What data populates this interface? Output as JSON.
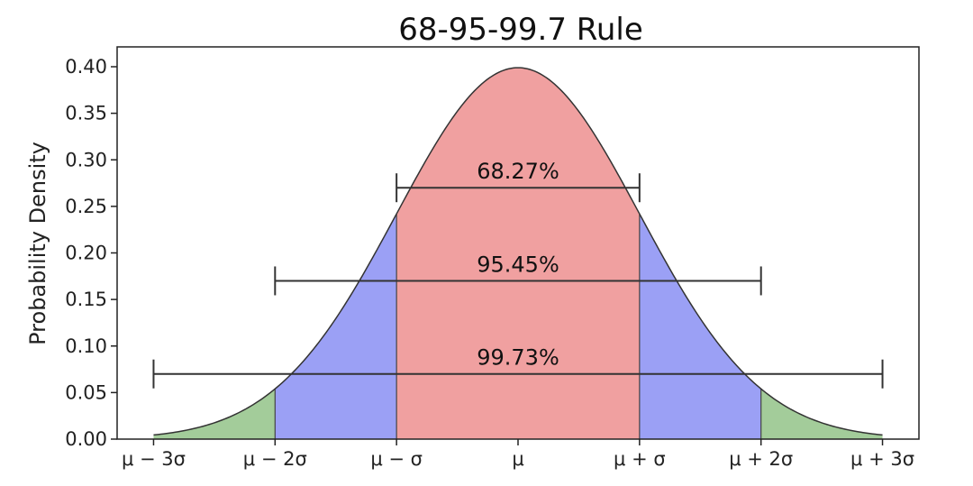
{
  "chart_data": {
    "type": "area",
    "title": "68-95-99.7 Rule",
    "xlabel": "",
    "ylabel": "Probability Density",
    "xlim": [
      -3.3,
      3.3
    ],
    "ylim": [
      0,
      0.4
    ],
    "x_ticks": [
      {
        "value": -3,
        "label": "μ − 3σ"
      },
      {
        "value": -2,
        "label": "μ − 2σ"
      },
      {
        "value": -1,
        "label": "μ − σ"
      },
      {
        "value": 0,
        "label": "μ"
      },
      {
        "value": 1,
        "label": "μ + σ"
      },
      {
        "value": 2,
        "label": "μ + 2σ"
      },
      {
        "value": 3,
        "label": "μ + 3σ"
      }
    ],
    "y_ticks": [
      0.0,
      0.05,
      0.1,
      0.15,
      0.2,
      0.25,
      0.3,
      0.35,
      0.4
    ],
    "y_tick_labels": [
      "0.00",
      "0.05",
      "0.10",
      "0.15",
      "0.20",
      "0.25",
      "0.30",
      "0.35",
      "0.40"
    ],
    "curve": {
      "distribution": "normal",
      "mean": 0,
      "sd": 1,
      "x_range": [
        -3,
        3
      ]
    },
    "regions": [
      {
        "from": -3,
        "to": -2,
        "color": "#a3cc9a"
      },
      {
        "from": -2,
        "to": -1,
        "color": "#9ba0f5"
      },
      {
        "from": -1,
        "to": 1,
        "color": "#f0a0a0"
      },
      {
        "from": 1,
        "to": 2,
        "color": "#9ba0f5"
      },
      {
        "from": 2,
        "to": 3,
        "color": "#a3cc9a"
      }
    ],
    "intervals": [
      {
        "label": "68.27%",
        "from": -1,
        "to": 1,
        "y": 0.27
      },
      {
        "label": "95.45%",
        "from": -2,
        "to": 2,
        "y": 0.17
      },
      {
        "label": "99.73%",
        "from": -3,
        "to": 3,
        "y": 0.07
      }
    ],
    "grid": false,
    "colors": {
      "curve": "#333333",
      "interval": "#333333"
    }
  }
}
